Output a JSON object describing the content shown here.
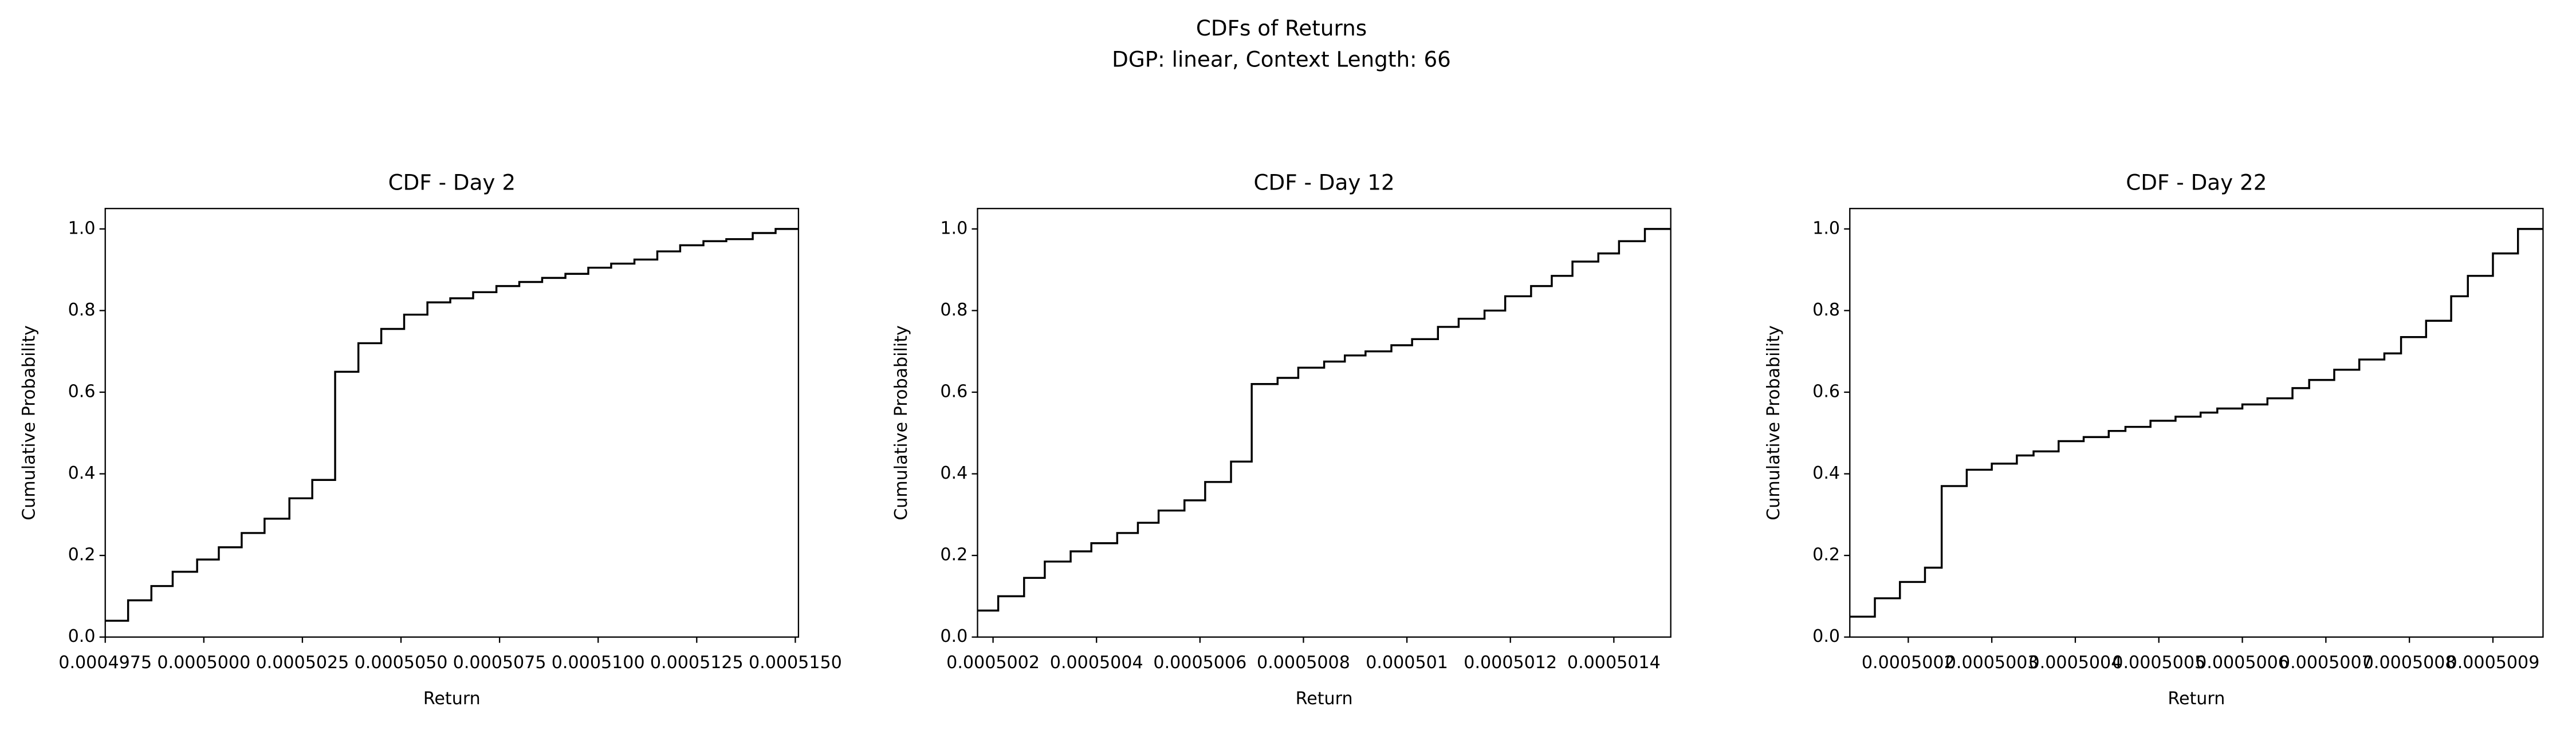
{
  "title": "CDFs of Returns",
  "subtitle": "DGP: linear, Context Length: 66",
  "chart_data": [
    {
      "type": "step",
      "title": "CDF - Day 2",
      "xlabel": "Return",
      "ylabel": "Cumulative Probability",
      "color": "#000000",
      "x": [
        0.0004975,
        0.00049808,
        0.00049867,
        0.00049921,
        0.00049983,
        0.00050038,
        0.00050096,
        0.00050154,
        0.00050217,
        0.00050275,
        0.00050333,
        0.00050392,
        0.0005045,
        0.00050508,
        0.00050567,
        0.00050625,
        0.00050683,
        0.00050742,
        0.000508,
        0.00050858,
        0.00050917,
        0.00050975,
        0.00051033,
        0.00051092,
        0.0005115,
        0.00051208,
        0.00051267,
        0.00051325,
        0.00051392,
        0.0005145
      ],
      "values": [
        0.04,
        0.09,
        0.125,
        0.16,
        0.19,
        0.22,
        0.255,
        0.29,
        0.34,
        0.385,
        0.65,
        0.72,
        0.755,
        0.79,
        0.82,
        0.83,
        0.845,
        0.86,
        0.87,
        0.88,
        0.89,
        0.905,
        0.915,
        0.925,
        0.945,
        0.96,
        0.97,
        0.975,
        0.99,
        1.0
      ],
      "xlim": [
        0.0004975,
        0.00051508
      ],
      "ylim": [
        0,
        1.05
      ],
      "xticks": [
        {
          "value": 0.0004975,
          "label": "0.0004975"
        },
        {
          "value": 0.0005,
          "label": "0.0005000"
        },
        {
          "value": 0.0005025,
          "label": "0.0005025"
        },
        {
          "value": 0.000505,
          "label": "0.0005050"
        },
        {
          "value": 0.0005075,
          "label": "0.0005075"
        },
        {
          "value": 0.00051,
          "label": "0.0005100"
        },
        {
          "value": 0.0005125,
          "label": "0.0005125"
        },
        {
          "value": 0.000515,
          "label": "0.0005150"
        }
      ],
      "yticks": [
        {
          "value": 0,
          "label": "0.0"
        },
        0.2,
        0.4,
        0.6,
        0.8,
        {
          "value": 1,
          "label": "1.0"
        }
      ]
    },
    {
      "type": "step",
      "title": "CDF - Day 12",
      "xlabel": "Return",
      "ylabel": "Cumulative Probability",
      "color": "#000000",
      "x": [
        0.00050017,
        0.00050021,
        0.00050026,
        0.0005003,
        0.00050035,
        0.00050039,
        0.00050044,
        0.00050048,
        0.00050052,
        0.00050057,
        0.00050061,
        0.00050066,
        0.0005007,
        0.00050075,
        0.00050079,
        0.00050084,
        0.00050088,
        0.00050092,
        0.00050097,
        0.00050101,
        0.00050106,
        0.0005011,
        0.00050115,
        0.00050119,
        0.00050124,
        0.00050128,
        0.00050132,
        0.00050137,
        0.00050141,
        0.00050146
      ],
      "values": [
        0.065,
        0.1,
        0.145,
        0.185,
        0.21,
        0.23,
        0.255,
        0.28,
        0.31,
        0.335,
        0.38,
        0.43,
        0.62,
        0.635,
        0.66,
        0.675,
        0.69,
        0.7,
        0.715,
        0.73,
        0.76,
        0.78,
        0.8,
        0.835,
        0.86,
        0.885,
        0.92,
        0.94,
        0.97,
        1.0
      ],
      "xlim": [
        0.00050017,
        0.00050151
      ],
      "ylim": [
        0,
        1.05
      ],
      "xticks": [
        0.0005002,
        0.0005004,
        0.0005006,
        0.0005008,
        0.000501,
        0.0005012,
        0.0005014
      ],
      "yticks": [
        {
          "value": 0,
          "label": "0.0"
        },
        0.2,
        0.4,
        0.6,
        0.8,
        {
          "value": 1,
          "label": "1.0"
        }
      ]
    },
    {
      "type": "step",
      "title": "CDF - Day 22",
      "xlabel": "Return",
      "ylabel": "Cumulative Probability",
      "color": "#000000",
      "x": [
        0.00050013,
        0.00050016,
        0.00050019,
        0.00050022,
        0.00050024,
        0.00050027,
        0.0005003,
        0.00050033,
        0.00050035,
        0.00050038,
        0.00050041,
        0.00050044,
        0.00050046,
        0.00050049,
        0.00050052,
        0.00050055,
        0.00050057,
        0.0005006,
        0.00050063,
        0.00050066,
        0.00050068,
        0.00050071,
        0.00050074,
        0.00050077,
        0.00050079,
        0.00050082,
        0.00050085,
        0.00050087,
        0.0005009,
        0.00050093
      ],
      "values": [
        0.05,
        0.095,
        0.135,
        0.17,
        0.37,
        0.41,
        0.425,
        0.445,
        0.455,
        0.48,
        0.49,
        0.505,
        0.515,
        0.53,
        0.54,
        0.55,
        0.56,
        0.57,
        0.585,
        0.61,
        0.63,
        0.655,
        0.68,
        0.695,
        0.735,
        0.775,
        0.835,
        0.885,
        0.94,
        1.0
      ],
      "xlim": [
        0.00050013,
        0.00050096
      ],
      "ylim": [
        0,
        1.05
      ],
      "xticks": [
        0.0005002,
        0.0005003,
        0.0005004,
        0.0005005,
        0.0005006,
        0.0005007,
        0.0005008,
        0.0005009
      ],
      "yticks": [
        {
          "value": 0,
          "label": "0.0"
        },
        0.2,
        0.4,
        0.6,
        0.8,
        {
          "value": 1,
          "label": "1.0"
        }
      ]
    }
  ]
}
